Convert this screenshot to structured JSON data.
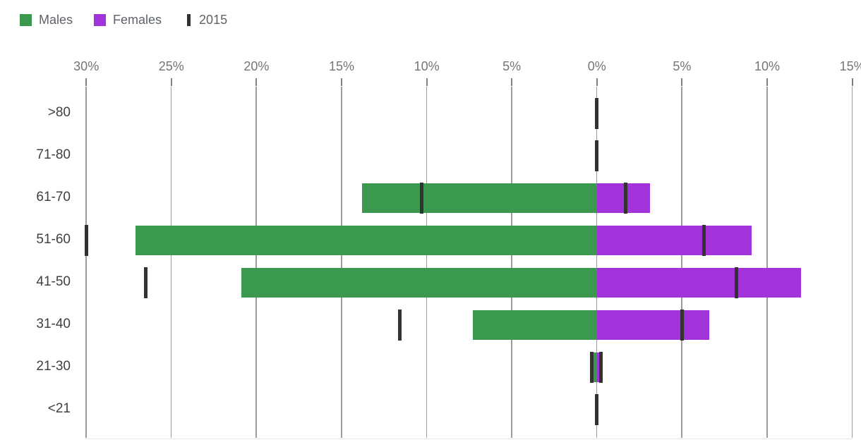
{
  "chart_data": {
    "type": "bar",
    "variant": "diverging-horizontal-population-pyramid",
    "title": "",
    "xlabel": "",
    "ylabel": "",
    "categories": [
      ">80",
      "71-80",
      "61-70",
      "51-60",
      "41-50",
      "31-40",
      "21-30",
      "<21"
    ],
    "series": [
      {
        "name": "Males",
        "side": "left",
        "color": "#3a994f",
        "values": [
          0,
          0,
          13.8,
          27.1,
          20.9,
          7.3,
          0.2,
          0
        ]
      },
      {
        "name": "Females",
        "side": "right",
        "color": "#a232d9",
        "values": [
          0,
          0,
          3.1,
          9.1,
          12.0,
          6.6,
          0.15,
          0
        ]
      }
    ],
    "benchmark": {
      "name": "2015",
      "color": "#323232",
      "males": [
        0,
        0,
        10.3,
        30.0,
        26.5,
        11.6,
        0.3,
        0
      ],
      "females": [
        0,
        0,
        1.7,
        6.3,
        8.2,
        5.0,
        0.25,
        0
      ]
    },
    "x_axis": {
      "min": -30,
      "max": 15,
      "unit": "%",
      "grid": true,
      "ticks": [
        {
          "label": "30%",
          "value": -30
        },
        {
          "label": "25%",
          "value": -25
        },
        {
          "label": "20%",
          "value": -20
        },
        {
          "label": "15%",
          "value": -15
        },
        {
          "label": "10%",
          "value": -10
        },
        {
          "label": "5%",
          "value": -5
        },
        {
          "label": "0%",
          "value": 0
        },
        {
          "label": "5%",
          "value": 5
        },
        {
          "label": "10%",
          "value": 10
        },
        {
          "label": "15%",
          "value": 15
        }
      ]
    },
    "legend": [
      {
        "label": "Males",
        "swatch": "square",
        "color": "#3a994f"
      },
      {
        "label": "Females",
        "swatch": "square",
        "color": "#a232d9"
      },
      {
        "label": "2015",
        "swatch": "tick",
        "color": "#323232"
      }
    ],
    "legend_position": "top-left",
    "colors": {
      "gridline": "#9c9c9c",
      "axis_text": "#757575",
      "category_text": "#404040",
      "legend_text": "#5f6368",
      "background": "#ffffff"
    }
  }
}
